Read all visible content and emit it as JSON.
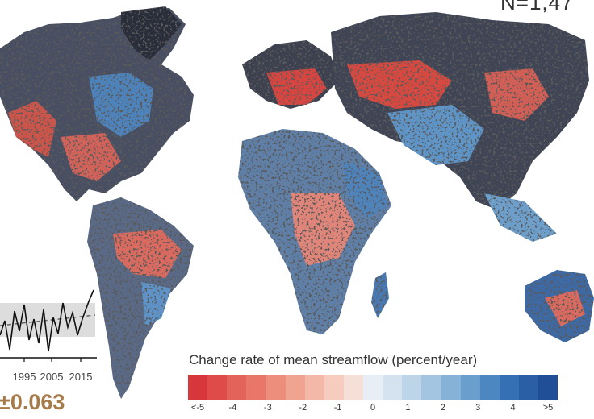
{
  "figure": {
    "n_label": "N=1,47",
    "legend_title": "Change rate of mean streamflow (percent/year)",
    "legend_colors": [
      "#d7363a",
      "#df4b49",
      "#e3625a",
      "#e8776a",
      "#ec8e7b",
      "#f0a390",
      "#f3b8a7",
      "#f6ccbe",
      "#f6dfd6",
      "#e7eef5",
      "#d4e3ef",
      "#bcd5e9",
      "#a3c5e1",
      "#86b2d7",
      "#6a9ecd",
      "#4d87c1",
      "#3470b3",
      "#2a5fa6",
      "#204f97"
    ],
    "legend_ticks": [
      "<-5",
      "-4",
      "-3",
      "-2",
      "-1",
      "0",
      "1",
      "2",
      "3",
      "4",
      ">5"
    ],
    "colors": {
      "negative": "#d7363a",
      "positive": "#2a5fa6",
      "data_gap": "#1a1a1a",
      "trend_value": "#a77a4a"
    }
  },
  "inset": {
    "x_ticks": [
      "1995",
      "2005",
      "2015"
    ],
    "trend_text": "±0.063"
  }
}
